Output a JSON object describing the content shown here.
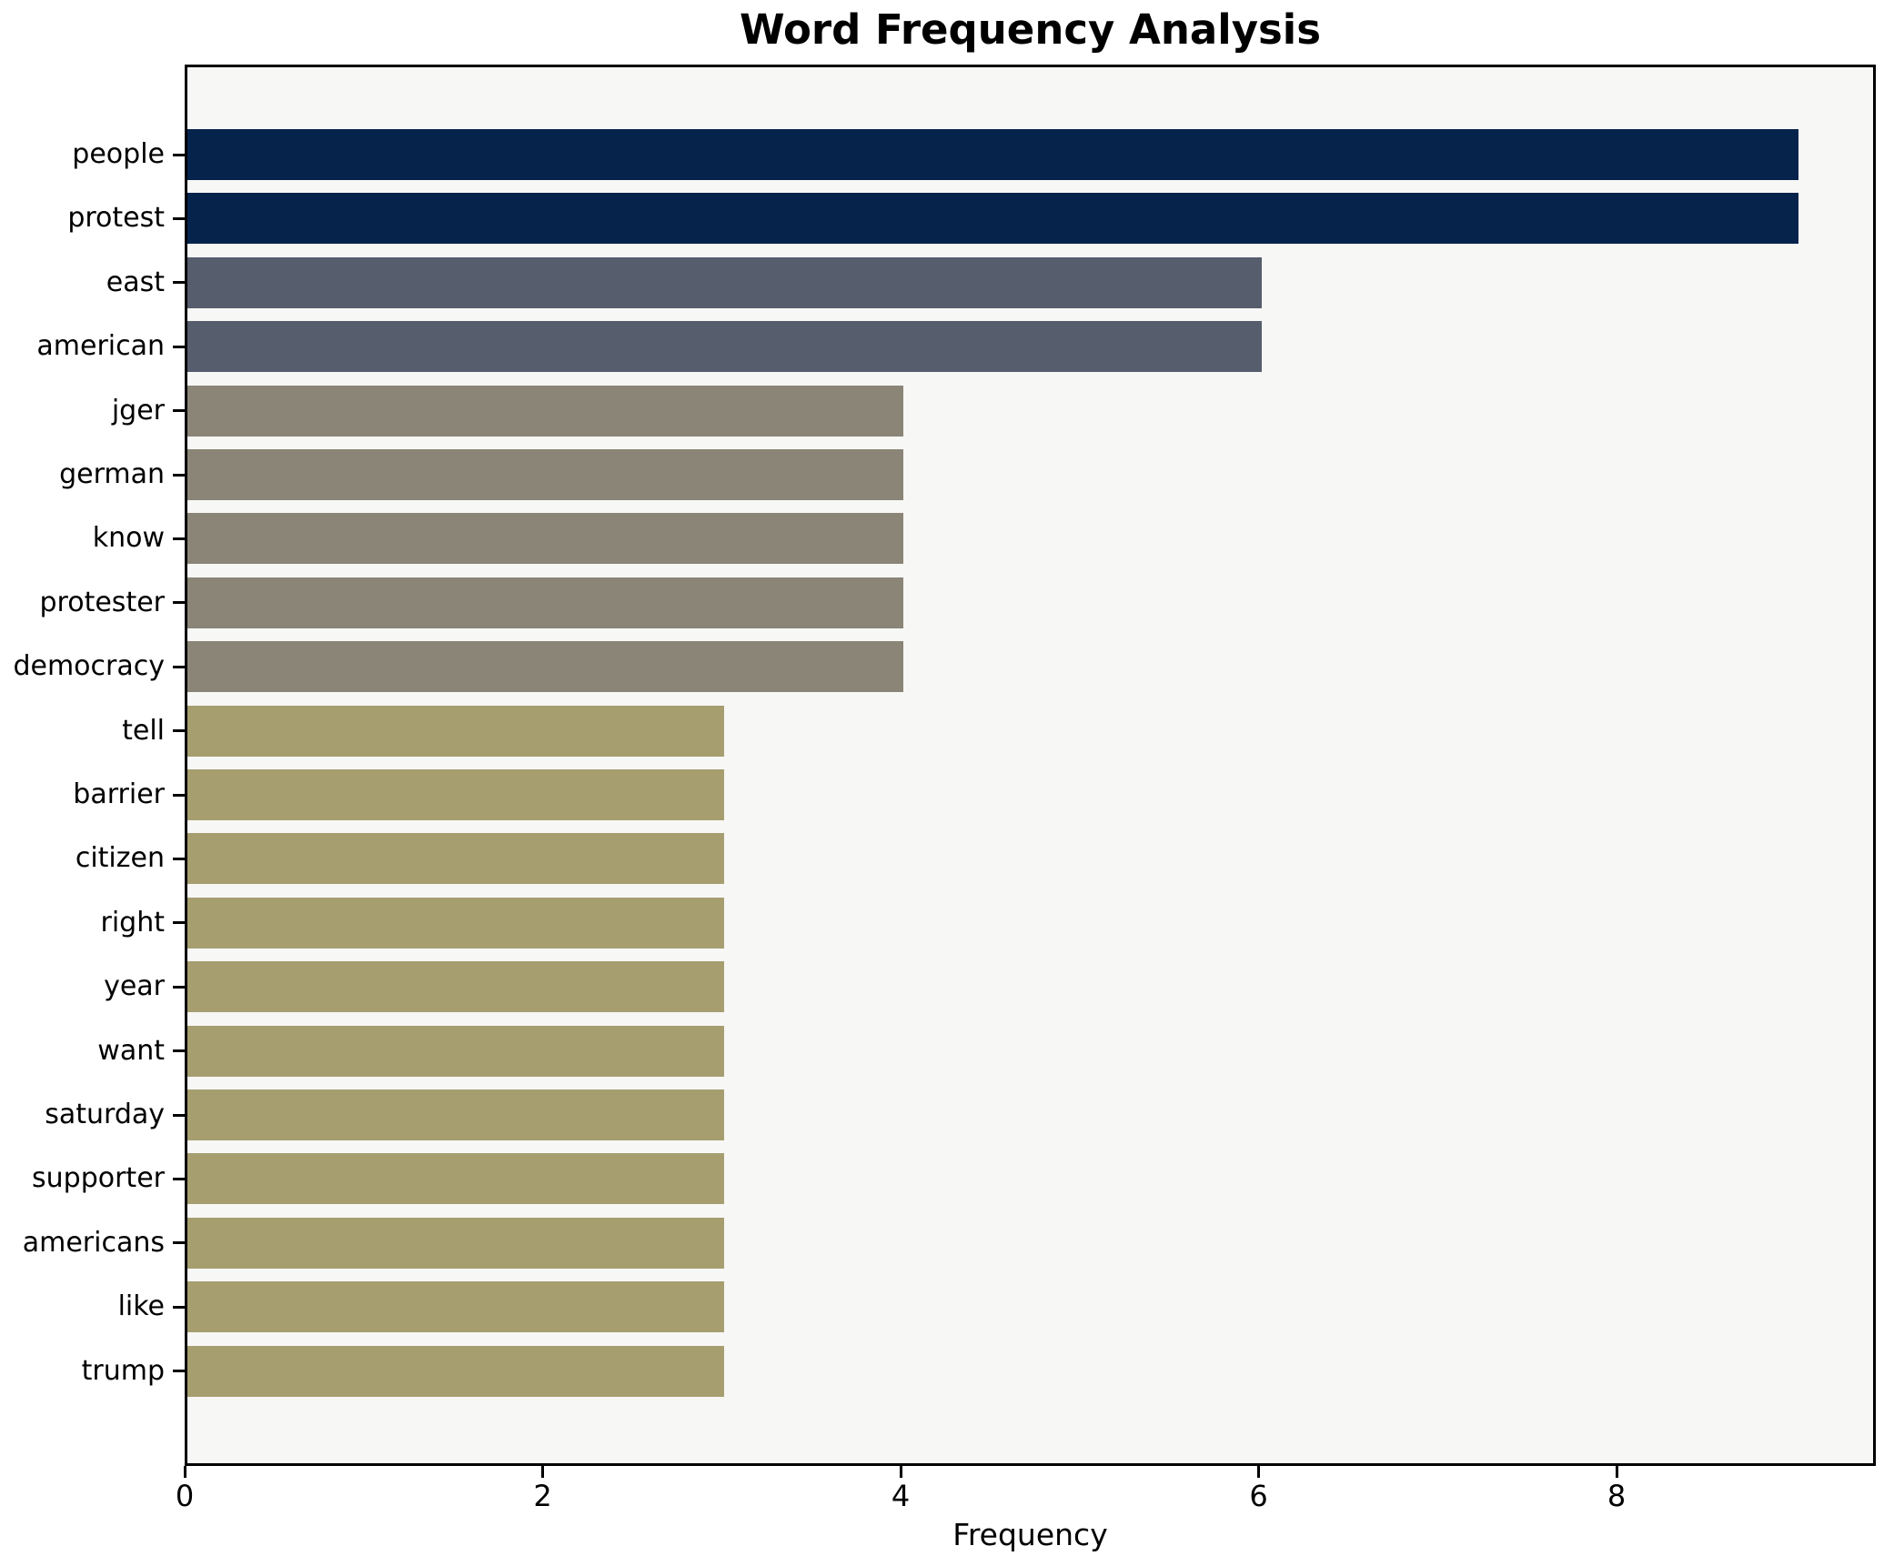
{
  "title": "Word Frequency Analysis",
  "chart_data": {
    "type": "bar",
    "orientation": "horizontal",
    "title": "Word Frequency Analysis",
    "xlabel": "Frequency",
    "ylabel": "",
    "categories": [
      "people",
      "protest",
      "east",
      "american",
      "jger",
      "german",
      "know",
      "protester",
      "democracy",
      "tell",
      "barrier",
      "citizen",
      "right",
      "year",
      "want",
      "saturday",
      "supporter",
      "americans",
      "like",
      "trump"
    ],
    "values": [
      9,
      9,
      6,
      6,
      4,
      4,
      4,
      4,
      4,
      3,
      3,
      3,
      3,
      3,
      3,
      3,
      3,
      3,
      3,
      3
    ],
    "bar_colors": [
      "#06234c",
      "#06234c",
      "#565d6d",
      "#565d6d",
      "#8a8576",
      "#8a8576",
      "#8a8576",
      "#8a8576",
      "#8a8576",
      "#a79e70",
      "#a79e70",
      "#a79e70",
      "#a79e70",
      "#a79e70",
      "#a79e70",
      "#a79e70",
      "#a79e70",
      "#a79e70",
      "#a79e70",
      "#a79e70"
    ],
    "xticks": [
      0,
      2,
      4,
      6,
      8
    ],
    "xtick_labels": [
      "0",
      "2",
      "4",
      "6",
      "8"
    ],
    "xlim": [
      0,
      9.45
    ],
    "grid": false,
    "legend": null,
    "colors": {
      "plot_background": "#f7f7f6",
      "page_background": "#ffffff",
      "spine": "#000000",
      "text": "#000000"
    }
  }
}
